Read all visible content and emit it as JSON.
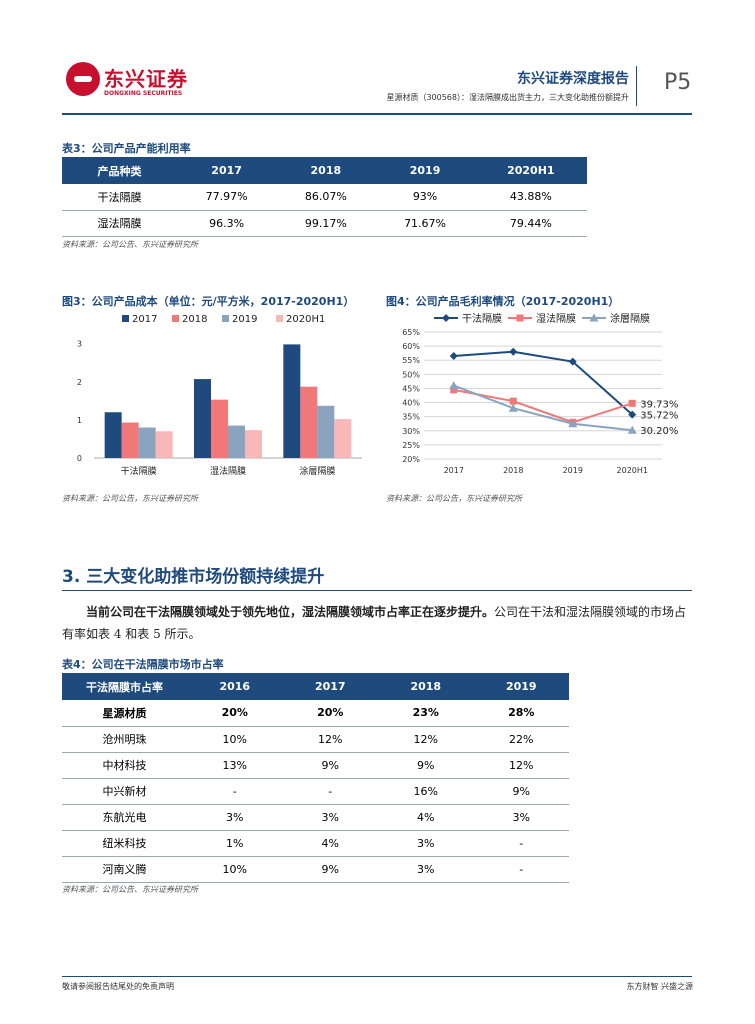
{
  "header": {
    "logo_cn": "东兴证券",
    "logo_en": "DONGXING SECURITIES",
    "report_title": "东兴证券深度报告",
    "report_subtitle": "星源材质（300568）：湿法隔膜成出货主力，三大变化助推份额提升",
    "page_number": "P5"
  },
  "table3": {
    "caption": "表3：公司产品产能利用率",
    "headers": [
      "产品种类",
      "2017",
      "2018",
      "2019",
      "2020H1"
    ],
    "rows": [
      [
        "干法隔膜",
        "77.97%",
        "86.07%",
        "93%",
        "43.88%"
      ],
      [
        "湿法隔膜",
        "96.3%",
        "99.17%",
        "71.67%",
        "79.44%"
      ]
    ],
    "source": "资料来源：公司公告、东兴证券研究所"
  },
  "chart3": {
    "caption": "图3：公司产品成本（单位：元/平方米，2017-2020H1）",
    "source": "资料来源：公司公告，东兴证券研究所"
  },
  "chart4": {
    "caption": "图4：公司产品毛利率情况（2017-2020H1）",
    "source": "资料来源：公司公告，东兴证券研究所"
  },
  "chart_data": [
    {
      "type": "bar",
      "categories": [
        "干法隔膜",
        "湿法隔膜",
        "涂層隔膜"
      ],
      "series": [
        {
          "name": "2017",
          "values": [
            1.2,
            2.07,
            2.98
          ]
        },
        {
          "name": "2018",
          "values": [
            0.93,
            1.53,
            1.87
          ]
        },
        {
          "name": "2019",
          "values": [
            0.8,
            0.85,
            1.37
          ]
        },
        {
          "name": "2020H1",
          "values": [
            0.7,
            0.73,
            1.02
          ]
        }
      ],
      "yticks": [
        "0",
        "1",
        "2",
        "3"
      ],
      "ylim": [
        0,
        3.2
      ],
      "colors": [
        "#1e4a7d",
        "#f07878",
        "#8aa3bf",
        "#f8b8b8"
      ],
      "legend": "top"
    },
    {
      "type": "line",
      "x": [
        "2017",
        "2018",
        "2019",
        "2020H1"
      ],
      "series": [
        {
          "name": "干法隔膜",
          "values": [
            56.5,
            58.0,
            54.5,
            35.72
          ],
          "color": "#1e4a7d",
          "marker": "diamond"
        },
        {
          "name": "湿法隔膜",
          "values": [
            44.5,
            40.5,
            33.0,
            39.73
          ],
          "color": "#f07878",
          "marker": "square"
        },
        {
          "name": "涂層隔膜",
          "values": [
            46.0,
            38.0,
            32.5,
            30.2
          ],
          "color": "#8aa3bf",
          "marker": "triangle"
        }
      ],
      "yticks": [
        "20%",
        "25%",
        "30%",
        "35%",
        "40%",
        "45%",
        "50%",
        "55%",
        "60%",
        "65%"
      ],
      "ylim": [
        20,
        65
      ],
      "data_labels": [
        "39.73%",
        "35.72%",
        "30.20%"
      ],
      "legend": "top"
    }
  ],
  "section": {
    "title": "3. 三大变化助推市场份额持续提升",
    "para_bold": "当前公司在干法隔膜领域处于领先地位，湿法隔膜领域市占率正在逐步提升。",
    "para_rest": "公司在干法和湿法隔膜领域的市场占有率如表 4 和表 5 所示。"
  },
  "table4": {
    "caption": "表4：公司在干法隔膜市场市占率",
    "headers": [
      "干法隔膜市占率",
      "2016",
      "2017",
      "2018",
      "2019"
    ],
    "rows": [
      [
        "星源材质",
        "20%",
        "20%",
        "23%",
        "28%"
      ],
      [
        "沧州明珠",
        "10%",
        "12%",
        "12%",
        "22%"
      ],
      [
        "中材科技",
        "13%",
        "9%",
        "9%",
        "12%"
      ],
      [
        "中兴新材",
        "-",
        "-",
        "16%",
        "9%"
      ],
      [
        "东航光电",
        "3%",
        "3%",
        "4%",
        "3%"
      ],
      [
        "纽米科技",
        "1%",
        "4%",
        "3%",
        "-"
      ],
      [
        "河南义腾",
        "10%",
        "9%",
        "3%",
        "-"
      ]
    ],
    "source": "资料来源：公司公告、东兴证券研究所"
  },
  "footer": {
    "left": "敬请参阅报告结尾处的免责声明",
    "right": "东方财智 兴盛之源"
  }
}
